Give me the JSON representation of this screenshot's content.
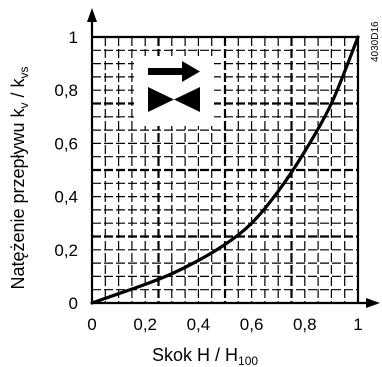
{
  "chart_data": {
    "type": "line",
    "xlabel": {
      "main": "Skok H / H",
      "sub": "100"
    },
    "ylabel": {
      "main": "Natężenie przepływu k",
      "sub1": "v",
      "mid": " / k",
      "sub2": "vs"
    },
    "xlim": [
      0,
      1
    ],
    "ylim": [
      0,
      1
    ],
    "x_ticks": [
      "0",
      "0,2",
      "0,4",
      "0,6",
      "0,8",
      "1"
    ],
    "y_ticks": [
      "0",
      "0,2",
      "0,4",
      "0,6",
      "0,8",
      "1"
    ],
    "grid": true,
    "series": [
      {
        "x": [
          0,
          0.1,
          0.2,
          0.3,
          0.4,
          0.5,
          0.6,
          0.7,
          0.8,
          0.9,
          1.0
        ],
        "y": [
          0,
          0.035,
          0.07,
          0.11,
          0.16,
          0.22,
          0.3,
          0.42,
          0.57,
          0.75,
          1.0
        ]
      }
    ],
    "code_label": "4030D16",
    "icon": "valve-flow-arrow-icon"
  }
}
